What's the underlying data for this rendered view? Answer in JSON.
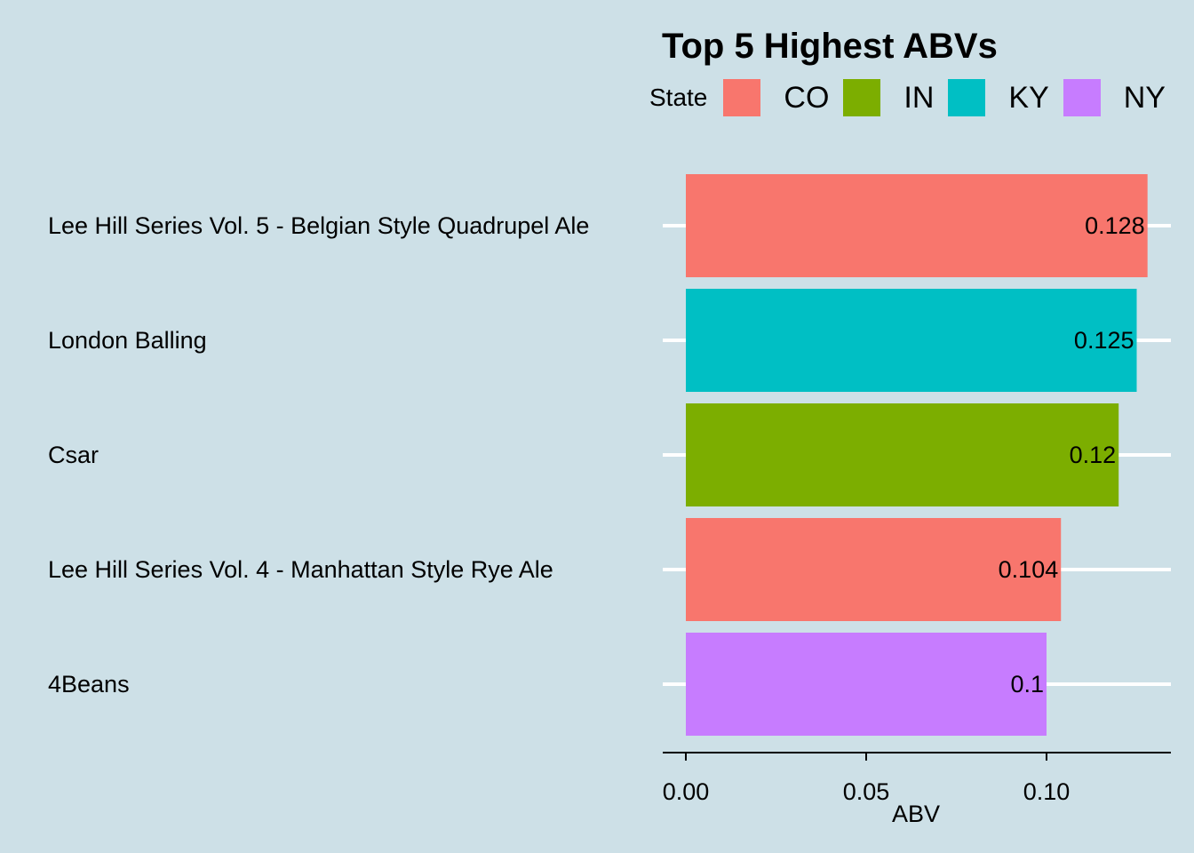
{
  "chart_data": {
    "type": "bar",
    "orientation": "horizontal",
    "title": "Top 5 Highest ABVs",
    "xlabel": "ABV",
    "ylabel": "",
    "xlim": [
      0,
      0.133
    ],
    "x_ticks": [
      "0.00",
      "0.05",
      "0.10"
    ],
    "x_tick_values": [
      0,
      0.05,
      0.1
    ],
    "grid": true,
    "legend_placement": "top",
    "legend_title": "State",
    "legend": [
      {
        "label": "CO",
        "color": "#F8766D"
      },
      {
        "label": "IN",
        "color": "#7CAE00"
      },
      {
        "label": "KY",
        "color": "#00BFC4"
      },
      {
        "label": "NY",
        "color": "#C77CFF"
      }
    ],
    "categories": [
      "Lee Hill Series Vol. 5 - Belgian Style Quadrupel Ale",
      "London Balling",
      "Csar",
      "Lee Hill Series Vol. 4 - Manhattan Style Rye Ale",
      "4Beans"
    ],
    "values": [
      0.128,
      0.125,
      0.12,
      0.104,
      0.1
    ],
    "value_labels": [
      "0.128",
      "0.125",
      "0.12",
      "0.104",
      "0.1"
    ],
    "states": [
      "CO",
      "KY",
      "IN",
      "CO",
      "NY"
    ]
  }
}
